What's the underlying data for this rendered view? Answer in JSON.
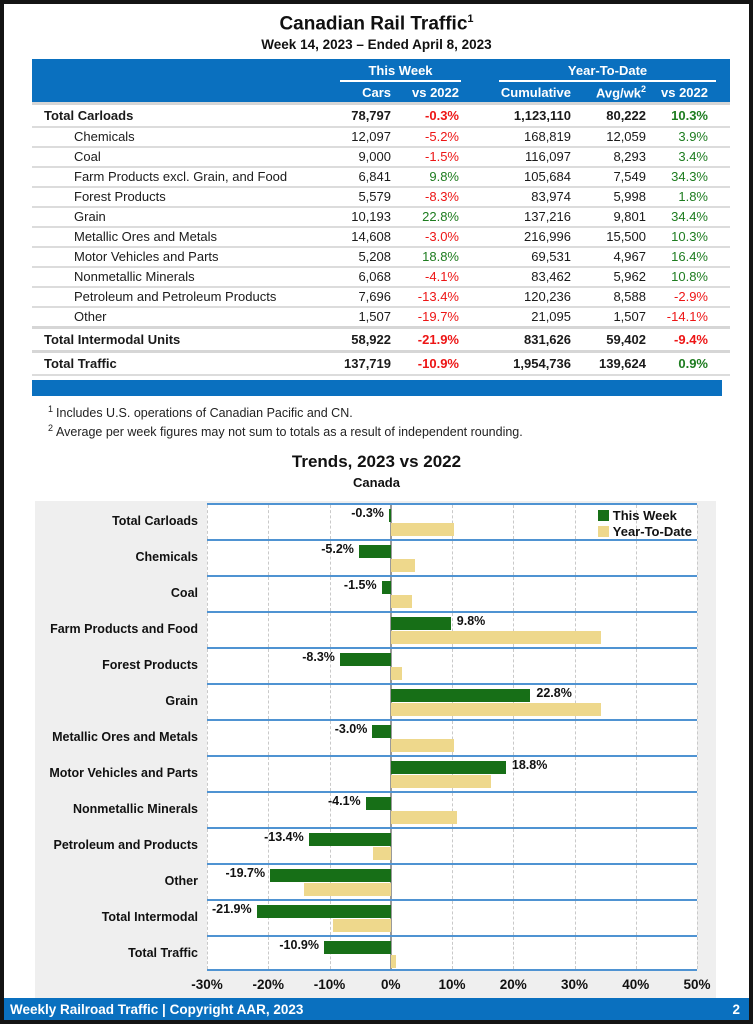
{
  "header": {
    "title": "Canadian Rail Traffic",
    "title_sup": "1",
    "subtitle": "Week 14, 2023 – Ended April 8, 2023"
  },
  "table": {
    "group_headers": [
      {
        "label": "This Week"
      },
      {
        "label": "Year-To-Date"
      }
    ],
    "columns": [
      "Cars",
      "vs 2022",
      "Cumulative",
      "Avg/wk",
      "vs 2022"
    ],
    "avgwk_sup": "2",
    "rows": [
      {
        "label": "Total Carloads",
        "bold": true,
        "indent": false,
        "cars": "78,797",
        "wk_vs": "-0.3%",
        "cumulative": "1,123,110",
        "avg_wk": "80,222",
        "ytd_vs": "10.3%"
      },
      {
        "label": "Chemicals",
        "bold": false,
        "indent": true,
        "cars": "12,097",
        "wk_vs": "-5.2%",
        "cumulative": "168,819",
        "avg_wk": "12,059",
        "ytd_vs": "3.9%"
      },
      {
        "label": "Coal",
        "bold": false,
        "indent": true,
        "cars": "9,000",
        "wk_vs": "-1.5%",
        "cumulative": "116,097",
        "avg_wk": "8,293",
        "ytd_vs": "3.4%"
      },
      {
        "label": "Farm Products excl. Grain, and Food",
        "bold": false,
        "indent": true,
        "cars": "6,841",
        "wk_vs": "9.8%",
        "cumulative": "105,684",
        "avg_wk": "7,549",
        "ytd_vs": "34.3%"
      },
      {
        "label": "Forest Products",
        "bold": false,
        "indent": true,
        "cars": "5,579",
        "wk_vs": "-8.3%",
        "cumulative": "83,974",
        "avg_wk": "5,998",
        "ytd_vs": "1.8%"
      },
      {
        "label": "Grain",
        "bold": false,
        "indent": true,
        "cars": "10,193",
        "wk_vs": "22.8%",
        "cumulative": "137,216",
        "avg_wk": "9,801",
        "ytd_vs": "34.4%"
      },
      {
        "label": "Metallic Ores and Metals",
        "bold": false,
        "indent": true,
        "cars": "14,608",
        "wk_vs": "-3.0%",
        "cumulative": "216,996",
        "avg_wk": "15,500",
        "ytd_vs": "10.3%"
      },
      {
        "label": "Motor Vehicles and Parts",
        "bold": false,
        "indent": true,
        "cars": "5,208",
        "wk_vs": "18.8%",
        "cumulative": "69,531",
        "avg_wk": "4,967",
        "ytd_vs": "16.4%"
      },
      {
        "label": "Nonmetallic Minerals",
        "bold": false,
        "indent": true,
        "cars": "6,068",
        "wk_vs": "-4.1%",
        "cumulative": "83,462",
        "avg_wk": "5,962",
        "ytd_vs": "10.8%"
      },
      {
        "label": "Petroleum and Petroleum Products",
        "bold": false,
        "indent": true,
        "cars": "7,696",
        "wk_vs": "-13.4%",
        "cumulative": "120,236",
        "avg_wk": "8,588",
        "ytd_vs": "-2.9%"
      },
      {
        "label": "Other",
        "bold": false,
        "indent": true,
        "cars": "1,507",
        "wk_vs": "-19.7%",
        "cumulative": "21,095",
        "avg_wk": "1,507",
        "ytd_vs": "-14.1%"
      },
      {
        "label": "Total Intermodal Units",
        "bold": true,
        "indent": false,
        "cars": "58,922",
        "wk_vs": "-21.9%",
        "cumulative": "831,626",
        "avg_wk": "59,402",
        "ytd_vs": "-9.4%"
      },
      {
        "label": "Total Traffic",
        "bold": true,
        "indent": false,
        "cars": "137,719",
        "wk_vs": "-10.9%",
        "cumulative": "1,954,736",
        "avg_wk": "139,624",
        "ytd_vs": "0.9%"
      }
    ]
  },
  "footnotes": [
    {
      "sup": "1",
      "text": "Includes U.S. operations of Canadian Pacific and CN."
    },
    {
      "sup": "2",
      "text": "Average per week figures may not sum to totals as a result of independent rounding."
    }
  ],
  "chart": {
    "title": "Trends, 2023 vs 2022",
    "subtitle": "Canada"
  },
  "chart_data": {
    "type": "bar",
    "orientation": "horizontal",
    "title": "Trends, 2023 vs 2022",
    "subtitle": "Canada",
    "categories": [
      "Total Carloads",
      "Chemicals",
      "Coal",
      "Farm Products and Food",
      "Forest Products",
      "Grain",
      "Metallic Ores and Metals",
      "Motor Vehicles and Parts",
      "Nonmetallic Minerals",
      "Petroleum and Products",
      "Other",
      "Total Intermodal",
      "Total Traffic"
    ],
    "series": [
      {
        "name": "This Week",
        "color": "#176f17",
        "values": [
          -0.3,
          -5.2,
          -1.5,
          9.8,
          -8.3,
          22.8,
          -3.0,
          18.8,
          -4.1,
          -13.4,
          -19.7,
          -21.9,
          -10.9
        ],
        "labels": [
          "-0.3%",
          "-5.2%",
          "-1.5%",
          "9.8%",
          "-8.3%",
          "22.8%",
          "-3.0%",
          "18.8%",
          "-4.1%",
          "-13.4%",
          "-19.7%",
          "-21.9%",
          "-10.9%"
        ]
      },
      {
        "name": "Year-To-Date",
        "color": "#eed88c",
        "values": [
          10.3,
          3.9,
          3.4,
          34.3,
          1.8,
          34.4,
          10.3,
          16.4,
          10.8,
          -2.9,
          -14.1,
          -9.4,
          0.9
        ]
      }
    ],
    "xlim": [
      -30,
      50
    ],
    "x_ticks": [
      {
        "v": -30,
        "label": "-30%"
      },
      {
        "v": -20,
        "label": "-20%"
      },
      {
        "v": -10,
        "label": "-10%"
      },
      {
        "v": 0,
        "label": "0%"
      },
      {
        "v": 10,
        "label": "10%"
      },
      {
        "v": 20,
        "label": "20%"
      },
      {
        "v": 30,
        "label": "30%"
      },
      {
        "v": 40,
        "label": "40%"
      },
      {
        "v": 50,
        "label": "50%"
      }
    ],
    "legend_position": "top-right",
    "grid": "dashed-vertical"
  },
  "footer": {
    "left": "Weekly Railroad Traffic | Copyright AAR, 2023",
    "page": "2"
  },
  "colors": {
    "brand_blue": "#0a70bf",
    "positive_green": "#1d7c1f",
    "negative_red": "#ed1515",
    "bar_green": "#176f17",
    "bar_tan": "#eed88c",
    "separator_blue": "#4f93d2",
    "panel_gray": "#efefef"
  }
}
